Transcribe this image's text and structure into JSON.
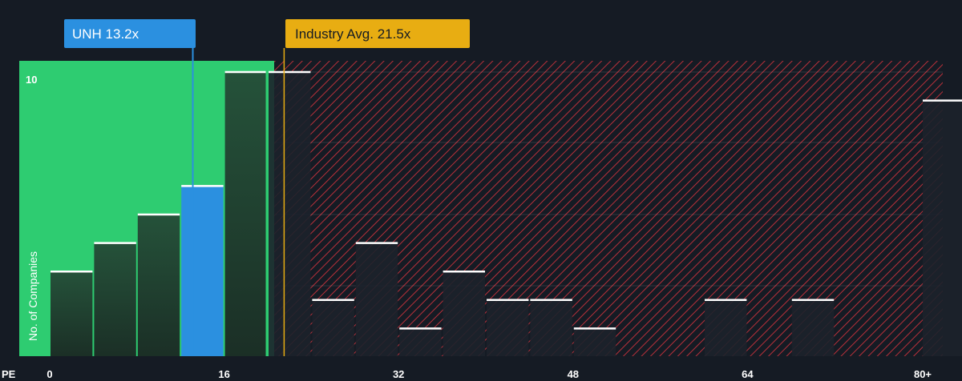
{
  "chart_data": {
    "type": "bar",
    "title": "",
    "xlabel": "PE",
    "ylabel": "No. of Companies",
    "x_ticks": [
      "0",
      "16",
      "32",
      "48",
      "64",
      "80+"
    ],
    "y_ticks": [
      "10"
    ],
    "xlim": [
      0,
      80
    ],
    "ylim": [
      0,
      10.4
    ],
    "bin_width": 4,
    "bins": [
      {
        "from": 0,
        "to": 4,
        "count": 3
      },
      {
        "from": 4,
        "to": 8,
        "count": 4
      },
      {
        "from": 8,
        "to": 12,
        "count": 5
      },
      {
        "from": 12,
        "to": 16,
        "count": 6,
        "highlight": true
      },
      {
        "from": 16,
        "to": 20,
        "count": 10
      },
      {
        "from": 20,
        "to": 24,
        "count": 10
      },
      {
        "from": 24,
        "to": 28,
        "count": 2
      },
      {
        "from": 28,
        "to": 32,
        "count": 4
      },
      {
        "from": 32,
        "to": 36,
        "count": 1
      },
      {
        "from": 36,
        "to": 40,
        "count": 3
      },
      {
        "from": 40,
        "to": 44,
        "count": 2
      },
      {
        "from": 44,
        "to": 48,
        "count": 2
      },
      {
        "from": 48,
        "to": 52,
        "count": 1
      },
      {
        "from": 52,
        "to": 56,
        "count": 0
      },
      {
        "from": 56,
        "to": 60,
        "count": 0
      },
      {
        "from": 60,
        "to": 64,
        "count": 2
      },
      {
        "from": 64,
        "to": 68,
        "count": 0
      },
      {
        "from": 68,
        "to": 72,
        "count": 2
      },
      {
        "from": 72,
        "to": 76,
        "count": 0
      },
      {
        "from": 76,
        "to": 80,
        "count": 0
      },
      {
        "from": 80,
        "to": 84,
        "count": 9
      }
    ],
    "company": {
      "label": "UNH 13.2x",
      "value": 13.2
    },
    "industry_avg": {
      "label": "Industry Avg. 21.5x",
      "value": 21.5
    },
    "grid": true
  },
  "colors": {
    "background": "#151b24",
    "green_zone": "#2ecc71",
    "highlight_bar": "#2b90e0",
    "industry_marker": "#e8ad12",
    "hatch": "#b8303a",
    "bar_top": "#ffffff"
  }
}
